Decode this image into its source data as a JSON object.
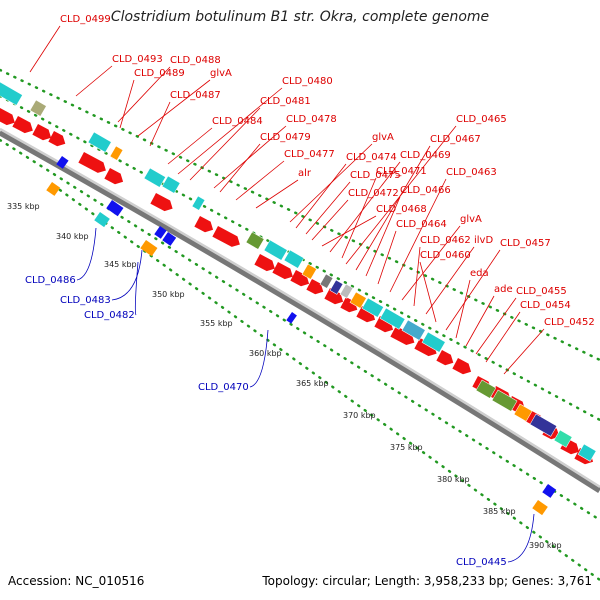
{
  "title": "Clostridium botulinum B1 str. Okra, complete genome",
  "footer": {
    "accession": "Accession: NC_010516",
    "summary": "Topology: circular; Length: 3,958,233 bp; Genes: 3,761"
  },
  "colors": {
    "forward_gene": "#ee1111",
    "reverse_gene": "#1111ee",
    "cog_cyan": "#22cccc",
    "cog_orange": "#ff9900",
    "cog_olive": "#669933",
    "cog_navy": "#333399",
    "label_top": "#dd0000",
    "label_bottom": "#0000bb",
    "tick_dots": "#229922"
  },
  "top_labels": [
    "CLD_0499",
    "CLD_0493",
    "CLD_0488",
    "CLD_0489",
    "glvA",
    "CLD_0487",
    "CLD_0480",
    "CLD_0481",
    "CLD_0484",
    "CLD_0478",
    "CLD_0479",
    "CLD_0477",
    "alr",
    "glvA",
    "CLD_0474",
    "CLD_0475",
    "CLD_0472",
    "CLD_0468",
    "CLD_0469",
    "CLD_0471",
    "CLD_0465",
    "CLD_0467",
    "CLD_0466",
    "CLD_0464",
    "CLD_0463",
    "glvA",
    "CLD_0462",
    "ilvD",
    "CLD_0460",
    "CLD_0457",
    "eda",
    "ade",
    "CLD_0455",
    "CLD_0454",
    "CLD_0452"
  ],
  "bottom_labels": [
    "CLD_0486",
    "CLD_0483",
    "CLD_0482",
    "CLD_0470",
    "CLD_0445"
  ],
  "scale_labels": [
    "335 kbp",
    "340 kbp",
    "345 kbp",
    "350 kbp",
    "355 kbp",
    "360 kbp",
    "365 kbp",
    "370 kbp",
    "375 kbp",
    "380 kbp",
    "385 kbp",
    "390 kbp"
  ]
}
